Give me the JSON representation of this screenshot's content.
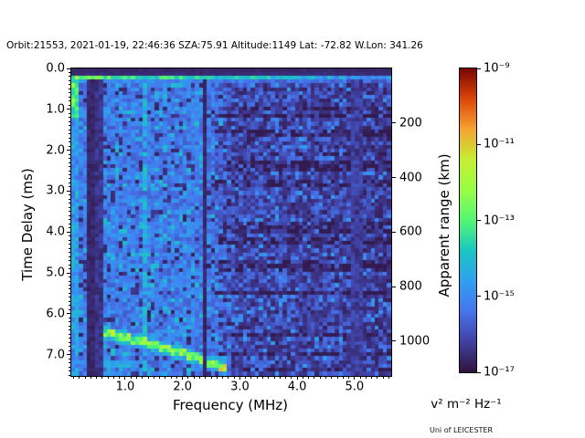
{
  "header": {
    "title": "Orbit:21553, 2021-01-19, 22:46:36 SZA:75.91 Altitude:1149 Lat: -72.82 W.Lon: 341.26"
  },
  "footer": {
    "credit": "Uni of LEICESTER"
  },
  "chart_data": {
    "type": "heatmap",
    "xlabel": "Frequency (MHz)",
    "ylabel": "Time Delay (ms)",
    "y2label": "Apparent range (km)",
    "xlim_mhz": [
      0.06,
      5.64
    ],
    "ylim_ms": [
      0,
      7.52
    ],
    "km_per_ms": 149.9,
    "x_major_ticks": [
      {
        "value": 1.0,
        "label": "1.0"
      },
      {
        "value": 2.0,
        "label": "2.0"
      },
      {
        "value": 3.0,
        "label": "3.0"
      },
      {
        "value": 4.0,
        "label": "4.0"
      },
      {
        "value": 5.0,
        "label": "5.0"
      }
    ],
    "x_minor_step_mhz": 0.1,
    "y_major_ticks": [
      {
        "value": 0.0,
        "label": "0.0"
      },
      {
        "value": 1.0,
        "label": "1.0"
      },
      {
        "value": 2.0,
        "label": "2.0"
      },
      {
        "value": 3.0,
        "label": "3.0"
      },
      {
        "value": 4.0,
        "label": "4.0"
      },
      {
        "value": 5.0,
        "label": "5.0"
      },
      {
        "value": 6.0,
        "label": "6.0"
      },
      {
        "value": 7.0,
        "label": "7.0"
      }
    ],
    "y_minor_step_ms": 0.1,
    "y2_ticks_km": [
      {
        "value": 200,
        "label": "200"
      },
      {
        "value": 400,
        "label": "400"
      },
      {
        "value": 600,
        "label": "600"
      },
      {
        "value": 800,
        "label": "800"
      },
      {
        "value": 1000,
        "label": "1000"
      }
    ],
    "colorbar": {
      "scale": "log10",
      "range_exp": [
        -17,
        -9
      ],
      "ticks": [
        {
          "exp": -9,
          "label": "10⁻⁹"
        },
        {
          "exp": -11,
          "label": "10⁻¹¹"
        },
        {
          "exp": -13,
          "label": "10⁻¹³"
        },
        {
          "exp": -15,
          "label": "10⁻¹⁵"
        },
        {
          "exp": -17,
          "label": "10⁻¹⁷"
        }
      ],
      "unit": "v² m⁻² Hz⁻¹",
      "colormap": "turbo",
      "stops": [
        "#30123b",
        "#4040a2",
        "#4675ed",
        "#2fa0f0",
        "#1ac7c2",
        "#53f573",
        "#98fe43",
        "#c6ee33",
        "#f5a331",
        "#dc4508",
        "#7a0403"
      ]
    },
    "heatmap": {
      "cols": 80,
      "rows": 80,
      "seed": 1337,
      "background": {
        "base_left": 0.22,
        "base_right_drop": 0.08,
        "noise_amp": 0.14,
        "dark_speckle_prob_left": 0.1,
        "dark_speckle_prob_right": 0.22,
        "bright_speckle_prob": 0.1,
        "right_row_band_prob": 0.28,
        "right_row_band_drop": 0.06
      },
      "features": {
        "top_dark_rows": 2,
        "calibration_row": {
          "row": 2,
          "level_left": 0.52,
          "level_right": 0.24
        },
        "left_edge_bright_cols": 2,
        "dark_columns": [
          {
            "mhz": 0.36,
            "width_cols": 2,
            "level": 0.05
          },
          {
            "mhz": 0.49,
            "width_cols": 2,
            "level": 0.08
          },
          {
            "mhz": 2.38,
            "width_cols": 1,
            "level": 0.05
          },
          {
            "mhz": 5.05,
            "width_cols": 3,
            "level": 0.1
          }
        ],
        "rfi_bright_column": {
          "mhz": 1.32,
          "level": 0.36,
          "prob": 0.6
        },
        "echo_trace": {
          "mhz_start": 0.45,
          "mhz_end": 2.8,
          "ms_start": 6.45,
          "ms_end": 7.36,
          "curve_exp": 1.3,
          "level": 0.5,
          "bright_blob_prob": 0.4
        },
        "second_echo": {
          "mhz": [
            0.4,
            1.15
          ],
          "ms": [
            7.12,
            7.3
          ],
          "level": 0.3
        }
      }
    }
  }
}
